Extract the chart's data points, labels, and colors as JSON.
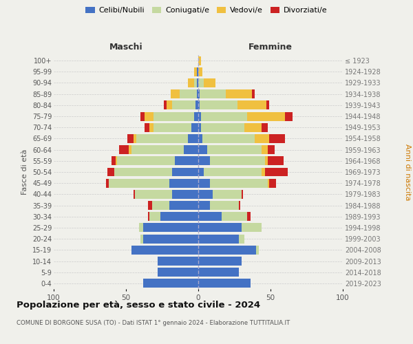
{
  "age_groups": [
    "0-4",
    "5-9",
    "10-14",
    "15-19",
    "20-24",
    "25-29",
    "30-34",
    "35-39",
    "40-44",
    "45-49",
    "50-54",
    "55-59",
    "60-64",
    "65-69",
    "70-74",
    "75-79",
    "80-84",
    "85-89",
    "90-94",
    "95-99",
    "100+"
  ],
  "birth_years": [
    "2019-2023",
    "2014-2018",
    "2009-2013",
    "2004-2008",
    "1999-2003",
    "1994-1998",
    "1989-1993",
    "1984-1988",
    "1979-1983",
    "1974-1978",
    "1969-1973",
    "1964-1968",
    "1959-1963",
    "1954-1958",
    "1949-1953",
    "1944-1948",
    "1939-1943",
    "1934-1938",
    "1929-1933",
    "1924-1928",
    "≤ 1923"
  ],
  "colors": {
    "celibi": "#4472c4",
    "coniugati": "#c5d9a0",
    "vedovi": "#f0c040",
    "divorziati": "#cc2222"
  },
  "maschi": {
    "celibi": [
      38,
      28,
      28,
      46,
      38,
      38,
      26,
      20,
      18,
      20,
      18,
      16,
      10,
      7,
      5,
      3,
      2,
      1,
      1,
      1,
      0
    ],
    "coniugati": [
      0,
      0,
      0,
      0,
      2,
      3,
      8,
      12,
      26,
      42,
      40,
      40,
      36,
      36,
      26,
      28,
      16,
      12,
      2,
      0,
      0
    ],
    "vedovi": [
      0,
      0,
      0,
      0,
      0,
      0,
      0,
      0,
      0,
      0,
      0,
      1,
      2,
      2,
      3,
      6,
      4,
      6,
      4,
      2,
      0
    ],
    "divorziati": [
      0,
      0,
      0,
      0,
      0,
      0,
      1,
      3,
      1,
      2,
      5,
      3,
      7,
      4,
      3,
      3,
      2,
      0,
      0,
      0,
      0
    ]
  },
  "femmine": {
    "celibi": [
      36,
      28,
      30,
      40,
      28,
      30,
      16,
      8,
      10,
      8,
      4,
      8,
      6,
      3,
      2,
      2,
      1,
      1,
      0,
      0,
      0
    ],
    "coniugati": [
      0,
      0,
      0,
      2,
      4,
      14,
      18,
      20,
      20,
      40,
      40,
      38,
      38,
      36,
      30,
      32,
      26,
      18,
      4,
      0,
      0
    ],
    "vedovi": [
      0,
      0,
      0,
      0,
      0,
      0,
      0,
      0,
      0,
      1,
      2,
      2,
      4,
      10,
      12,
      26,
      20,
      18,
      8,
      3,
      2
    ],
    "divorziati": [
      0,
      0,
      0,
      0,
      0,
      0,
      2,
      1,
      1,
      5,
      16,
      11,
      5,
      11,
      4,
      5,
      2,
      2,
      0,
      0,
      0
    ]
  },
  "xlim": 100,
  "title": "Popolazione per età, sesso e stato civile - 2024",
  "subtitle": "COMUNE DI BORGONE SUSA (TO) - Dati ISTAT 1° gennaio 2024 - Elaborazione TUTTITALIA.IT",
  "ylabel_left": "Fasce di età",
  "ylabel_right": "Anni di nascita",
  "xlabel_maschi": "Maschi",
  "xlabel_femmine": "Femmine",
  "background": "#f0f0eb"
}
